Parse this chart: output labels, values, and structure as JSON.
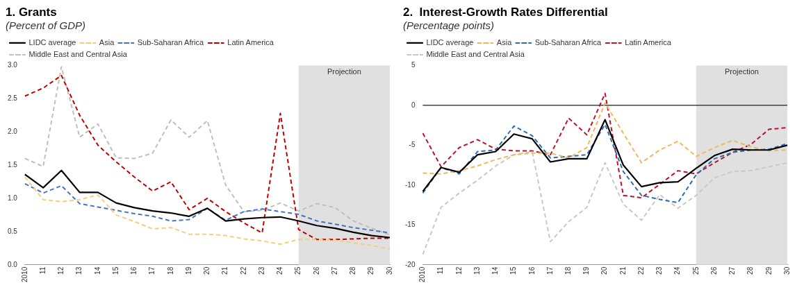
{
  "chart_data": [
    {
      "type": "line",
      "title": "1. Grants",
      "subtitle": "(Percent of GDP)",
      "categories": [
        "2010",
        "11",
        "12",
        "13",
        "14",
        "15",
        "16",
        "17",
        "18",
        "19",
        "20",
        "21",
        "22",
        "23",
        "24",
        "25",
        "26",
        "27",
        "28",
        "29",
        "30"
      ],
      "series": [
        {
          "name": "LIDC average",
          "color": "#000000",
          "line_style": "solid",
          "values": [
            1.36,
            1.16,
            1.42,
            1.09,
            1.09,
            0.93,
            0.86,
            0.81,
            0.78,
            0.73,
            0.85,
            0.66,
            0.69,
            0.71,
            0.72,
            0.66,
            0.59,
            0.55,
            0.49,
            0.44,
            0.41
          ]
        },
        {
          "name": "Asia",
          "color": "#f0d07c",
          "line_style": "dashed",
          "values": [
            1.32,
            0.98,
            0.95,
            0.98,
            1.05,
            0.75,
            0.65,
            0.54,
            0.56,
            0.46,
            0.46,
            0.44,
            0.39,
            0.36,
            0.31,
            0.38,
            0.38,
            0.37,
            0.33,
            0.29,
            0.24
          ]
        },
        {
          "name": "Sub-Saharan Africa",
          "color": "#4472c4",
          "line_style": "dashed",
          "values": [
            1.22,
            1.08,
            1.19,
            0.92,
            0.87,
            0.82,
            0.77,
            0.73,
            0.66,
            0.68,
            0.85,
            0.67,
            0.8,
            0.84,
            0.8,
            0.76,
            0.66,
            0.61,
            0.56,
            0.52,
            0.48
          ]
        },
        {
          "name": "Latin America",
          "color": "#c00000",
          "line_style": "dashed",
          "values": [
            2.54,
            2.66,
            2.85,
            2.25,
            1.8,
            1.55,
            1.32,
            1.11,
            1.25,
            0.83,
            1.0,
            0.8,
            0.63,
            0.48,
            2.28,
            0.53,
            0.38,
            0.38,
            0.39,
            0.4,
            0.4
          ]
        },
        {
          "name": "Middle East and Central Asia",
          "color": "#bfbfbf",
          "line_style": "dashed",
          "values": [
            1.6,
            1.48,
            2.98,
            1.92,
            2.12,
            1.61,
            1.6,
            1.68,
            2.18,
            1.92,
            2.17,
            1.2,
            0.8,
            0.82,
            0.93,
            0.81,
            0.92,
            0.86,
            0.66,
            0.55,
            0.45
          ]
        }
      ],
      "ylim": [
        0,
        3
      ],
      "yticks": [
        {
          "value": 0,
          "label": "0.0"
        },
        {
          "value": 0.5,
          "label": "0.5"
        },
        {
          "value": 1,
          "label": "1.0"
        },
        {
          "value": 1.5,
          "label": "1.5"
        },
        {
          "value": 2,
          "label": "2.0"
        },
        {
          "value": 2.5,
          "label": "2.5"
        },
        {
          "value": 3,
          "label": "3.0"
        }
      ],
      "bands": [
        {
          "axis": "x",
          "from": "25",
          "to": "30",
          "label": "Projection",
          "color": "#e0e0e0"
        }
      ],
      "grid": false,
      "legend": "top left"
    },
    {
      "type": "line",
      "title": "2.  Interest-Growth Rates Differential",
      "subtitle": "(Percentage points)",
      "categories": [
        "2010",
        "11",
        "12",
        "13",
        "14",
        "15",
        "16",
        "17",
        "18",
        "19",
        "20",
        "21",
        "22",
        "23",
        "24",
        "25",
        "26",
        "27",
        "28",
        "29",
        "30"
      ],
      "series": [
        {
          "name": "LIDC average",
          "color": "#000000",
          "line_style": "solid",
          "values": [
            -10.8,
            -7.8,
            -8.4,
            -6.2,
            -5.8,
            -3.6,
            -4.2,
            -7.1,
            -6.7,
            -6.7,
            -1.8,
            -7.5,
            -10.2,
            -9.7,
            -9.6,
            -7.9,
            -6.3,
            -5.5,
            -5.6,
            -5.6,
            -5.0
          ]
        },
        {
          "name": "Asia",
          "color": "#f2b75a",
          "line_style": "dashed",
          "values": [
            -8.5,
            -8.6,
            -8.2,
            -7.6,
            -6.8,
            -6.2,
            -6.0,
            -6.0,
            -6.6,
            -5.3,
            0.3,
            -3.5,
            -7.2,
            -5.6,
            -4.5,
            -6.4,
            -5.3,
            -4.4,
            -5.2,
            -5.7,
            -5.6
          ]
        },
        {
          "name": "Sub-Saharan Africa",
          "color": "#2e6cb0",
          "line_style": "dashed",
          "values": [
            -11.0,
            -7.8,
            -8.6,
            -5.8,
            -5.6,
            -2.6,
            -3.8,
            -6.6,
            -6.4,
            -6.2,
            -2.4,
            -8.3,
            -11.3,
            -11.8,
            -12.2,
            -8.7,
            -6.7,
            -5.9,
            -5.6,
            -5.5,
            -4.8
          ]
        },
        {
          "name": "Latin America",
          "color": "#c0102a",
          "line_style": "dashed",
          "values": [
            -3.5,
            -7.7,
            -5.3,
            -4.3,
            -5.5,
            -5.7,
            -5.7,
            -6.2,
            -1.6,
            -3.7,
            1.5,
            -11.3,
            -11.6,
            -9.9,
            -8.2,
            -8.6,
            -7.2,
            -5.9,
            -4.9,
            -3.0,
            -2.8
          ]
        },
        {
          "name": "Middle East and Central Asia",
          "color": "#c8c8c8",
          "line_style": "dashed",
          "values": [
            -18.7,
            -12.8,
            -11.0,
            -9.4,
            -7.6,
            -6.2,
            -5.8,
            -17.1,
            -14.6,
            -12.8,
            -7.2,
            -12.4,
            -14.4,
            -11.2,
            -12.9,
            -11.3,
            -9.1,
            -8.3,
            -8.2,
            -7.7,
            -7.2
          ]
        }
      ],
      "ylim": [
        -20,
        5
      ],
      "yticks": [
        -20,
        -15,
        -10,
        -5,
        0,
        5
      ],
      "ref_lines": [
        {
          "axis": "y",
          "value": 0,
          "color": "#404040"
        }
      ],
      "bands": [
        {
          "axis": "x",
          "from": "25",
          "to": "30",
          "label": "Projection",
          "color": "#e0e0e0"
        }
      ],
      "grid": false,
      "legend": "top left"
    }
  ]
}
